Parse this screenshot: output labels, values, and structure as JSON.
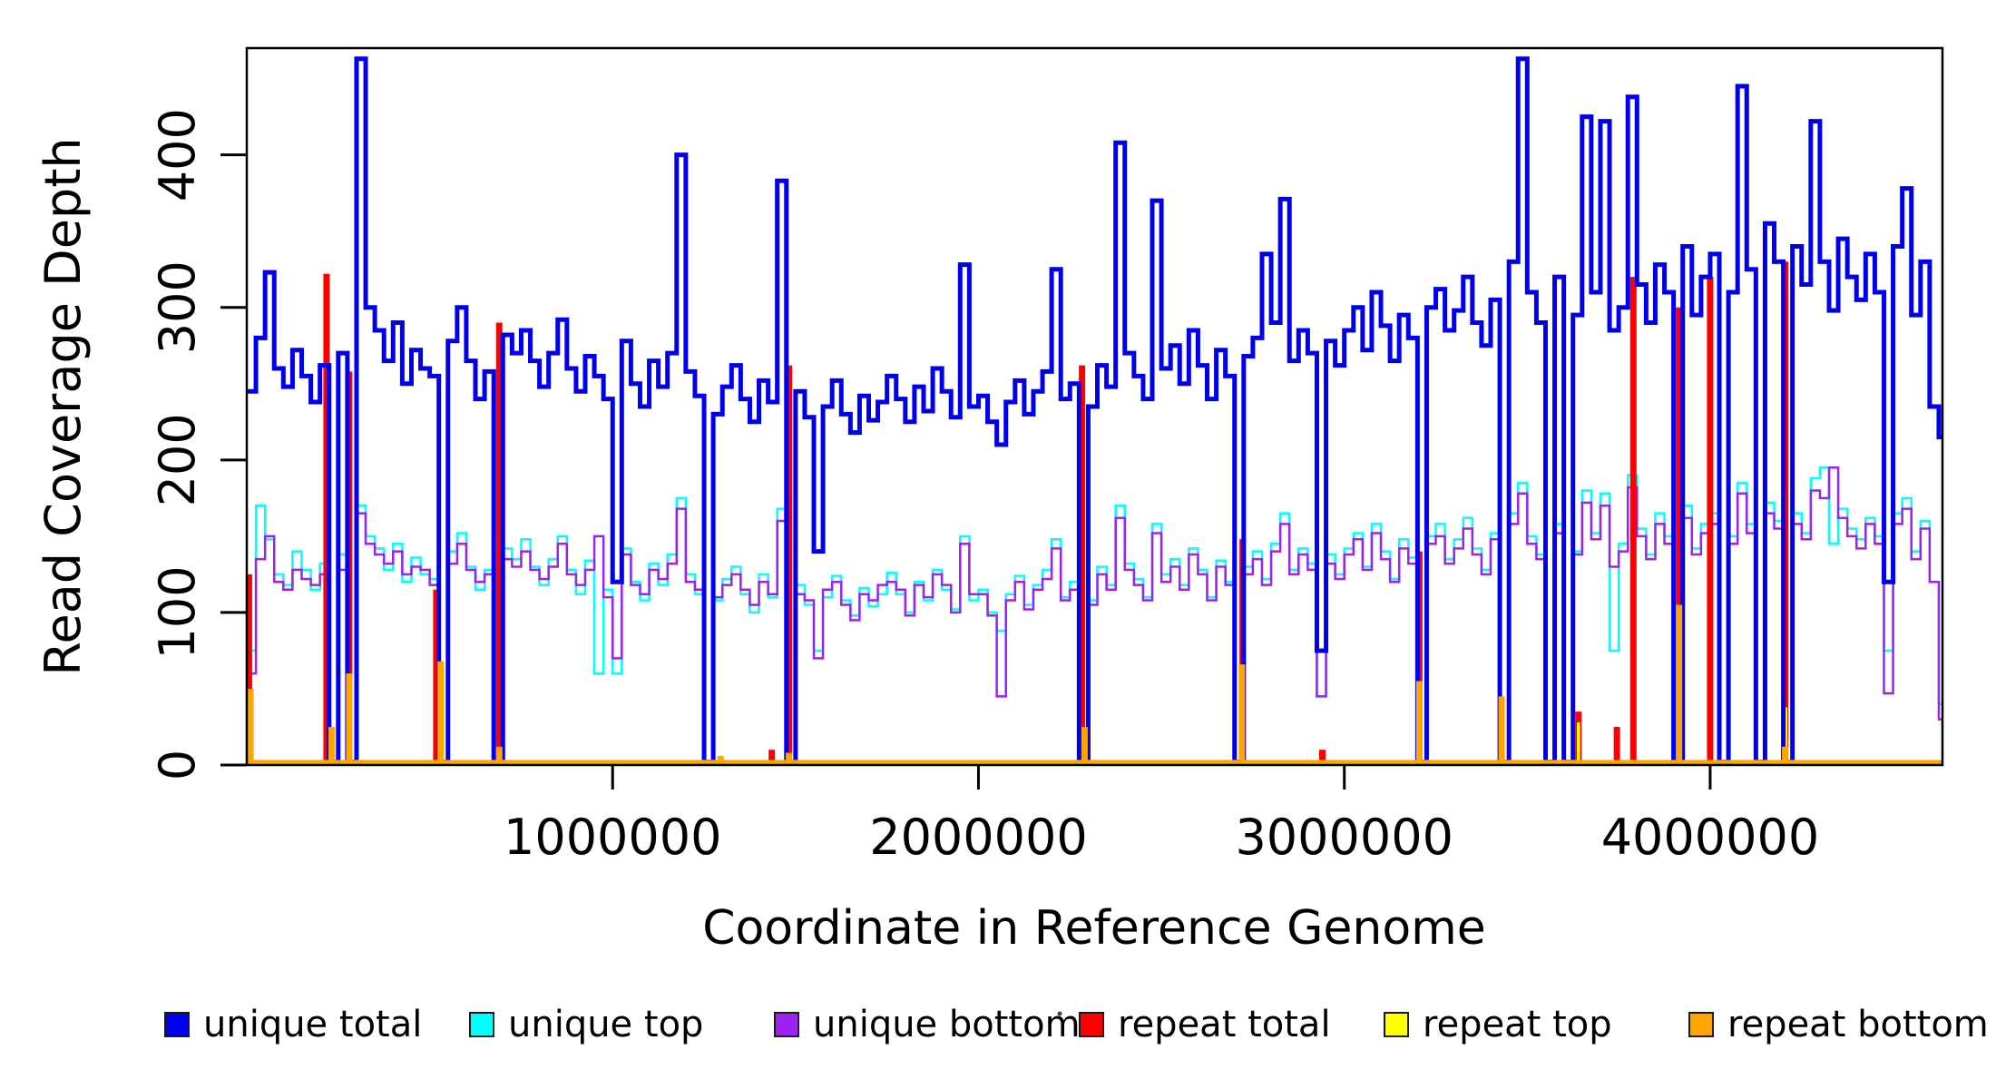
{
  "figure": {
    "background": "#ffffff"
  },
  "chart_data": {
    "type": "line",
    "subtype": "step-coverage-plot",
    "title": "",
    "xlabel": "Coordinate in Reference Genome",
    "ylabel": "Read Coverage Depth",
    "xlim": [
      0,
      4635000
    ],
    "ylim": [
      0,
      470
    ],
    "grid": false,
    "legend_position": "bottom",
    "bin_size": 25000,
    "x_ticks": [
      {
        "value": 1000000,
        "label": "1000000"
      },
      {
        "value": 2000000,
        "label": "2000000"
      },
      {
        "value": 3000000,
        "label": "3000000"
      },
      {
        "value": 4000000,
        "label": "4000000"
      }
    ],
    "y_ticks": [
      {
        "value": 0,
        "label": "0"
      },
      {
        "value": 100,
        "label": "100"
      },
      {
        "value": 200,
        "label": "200"
      },
      {
        "value": 300,
        "label": "300"
      },
      {
        "value": 400,
        "label": "400"
      }
    ],
    "series": [
      {
        "name": "unique total",
        "color": "#0000EE",
        "line_width": 5,
        "kind": "step",
        "values": [
          245,
          280,
          323,
          260,
          248,
          272,
          255,
          238,
          262,
          2,
          270,
          2,
          463,
          300,
          285,
          265,
          290,
          250,
          272,
          260,
          255,
          2,
          278,
          300,
          265,
          240,
          258,
          2,
          282,
          270,
          285,
          265,
          248,
          270,
          292,
          260,
          245,
          268,
          255,
          240,
          120,
          278,
          250,
          235,
          265,
          248,
          270,
          400,
          258,
          242,
          2,
          230,
          248,
          262,
          240,
          225,
          252,
          238,
          383,
          2,
          245,
          228,
          140,
          235,
          252,
          230,
          218,
          242,
          226,
          238,
          255,
          240,
          225,
          248,
          232,
          260,
          245,
          228,
          328,
          235,
          242,
          225,
          210,
          238,
          252,
          230,
          245,
          258,
          325,
          240,
          250,
          2,
          235,
          262,
          248,
          408,
          270,
          255,
          240,
          370,
          260,
          275,
          250,
          285,
          262,
          240,
          272,
          255,
          2,
          268,
          280,
          335,
          290,
          371,
          265,
          285,
          270,
          75,
          278,
          262,
          285,
          300,
          272,
          310,
          288,
          265,
          295,
          280,
          2,
          300,
          312,
          285,
          298,
          320,
          290,
          275,
          305,
          2,
          330,
          463,
          310,
          290,
          2,
          320,
          2,
          295,
          425,
          310,
          422,
          285,
          300,
          438,
          315,
          290,
          328,
          310,
          2,
          340,
          295,
          320,
          335,
          2,
          310,
          445,
          325,
          2,
          355,
          330,
          2,
          340,
          315,
          422,
          330,
          298,
          345,
          320,
          305,
          335,
          310,
          120,
          340,
          378,
          295,
          330,
          235,
          215
        ]
      },
      {
        "name": "unique top",
        "color": "#00FFFF",
        "line_width": 2.5,
        "kind": "step",
        "values": [
          75,
          170,
          148,
          125,
          118,
          140,
          128,
          115,
          132,
          2,
          138,
          2,
          170,
          150,
          142,
          128,
          145,
          120,
          136,
          125,
          122,
          2,
          140,
          152,
          130,
          115,
          128,
          2,
          142,
          135,
          148,
          130,
          118,
          135,
          150,
          128,
          112,
          134,
          60,
          115,
          60,
          142,
          120,
          108,
          132,
          118,
          138,
          175,
          125,
          112,
          2,
          108,
          122,
          130,
          112,
          100,
          125,
          110,
          168,
          2,
          118,
          105,
          75,
          110,
          124,
          108,
          98,
          116,
          104,
          112,
          126,
          112,
          100,
          120,
          108,
          128,
          115,
          102,
          150,
          108,
          115,
          100,
          88,
          112,
          124,
          105,
          118,
          128,
          148,
          110,
          120,
          2,
          108,
          130,
          118,
          170,
          132,
          122,
          110,
          158,
          125,
          135,
          118,
          142,
          128,
          110,
          134,
          120,
          2,
          130,
          140,
          122,
          145,
          165,
          128,
          142,
          132,
          45,
          138,
          125,
          142,
          152,
          130,
          158,
          140,
          122,
          148,
          136,
          2,
          150,
          158,
          135,
          148,
          162,
          142,
          128,
          152,
          2,
          165,
          185,
          150,
          138,
          2,
          158,
          2,
          140,
          180,
          152,
          178,
          75,
          145,
          190,
          155,
          138,
          165,
          150,
          2,
          170,
          142,
          158,
          165,
          2,
          150,
          185,
          158,
          2,
          172,
          160,
          2,
          165,
          152,
          188,
          195,
          145,
          168,
          155,
          148,
          162,
          150,
          75,
          165,
          175,
          140,
          160,
          120,
          40
        ]
      },
      {
        "name": "unique bottom",
        "color": "#A020F0",
        "line_width": 2.5,
        "kind": "step",
        "values": [
          60,
          135,
          150,
          120,
          115,
          128,
          122,
          118,
          125,
          2,
          128,
          2,
          165,
          145,
          138,
          132,
          140,
          125,
          130,
          128,
          118,
          2,
          132,
          145,
          128,
          120,
          125,
          2,
          135,
          130,
          140,
          128,
          122,
          130,
          145,
          125,
          118,
          128,
          150,
          110,
          70,
          138,
          118,
          112,
          128,
          122,
          132,
          168,
          120,
          115,
          2,
          110,
          118,
          125,
          115,
          105,
          120,
          112,
          160,
          2,
          112,
          108,
          70,
          115,
          120,
          105,
          95,
          112,
          108,
          118,
          120,
          115,
          98,
          118,
          110,
          125,
          118,
          100,
          145,
          112,
          112,
          98,
          45,
          108,
          120,
          102,
          115,
          122,
          142,
          108,
          115,
          2,
          105,
          125,
          115,
          162,
          128,
          118,
          108,
          152,
          120,
          130,
          115,
          138,
          125,
          108,
          130,
          118,
          2,
          125,
          135,
          118,
          140,
          158,
          125,
          138,
          128,
          45,
          132,
          122,
          138,
          148,
          128,
          152,
          135,
          120,
          142,
          132,
          2,
          145,
          150,
          132,
          142,
          155,
          138,
          125,
          148,
          2,
          158,
          178,
          145,
          135,
          2,
          152,
          2,
          138,
          172,
          148,
          170,
          130,
          140,
          182,
          150,
          135,
          158,
          145,
          2,
          162,
          138,
          152,
          158,
          2,
          145,
          178,
          152,
          2,
          165,
          155,
          2,
          158,
          148,
          180,
          175,
          195,
          162,
          150,
          142,
          158,
          145,
          47,
          158,
          168,
          135,
          155,
          120,
          30
        ]
      },
      {
        "name": "repeat total",
        "color": "#FF0000",
        "line_width": 4,
        "kind": "baseline-spikes",
        "baseline": 1,
        "spike_width": 7,
        "spikes": [
          [
            6000,
            125
          ],
          [
            218000,
            322
          ],
          [
            280000,
            258
          ],
          [
            518000,
            115
          ],
          [
            690000,
            290
          ],
          [
            1435000,
            10
          ],
          [
            1482000,
            262
          ],
          [
            2283000,
            262
          ],
          [
            2722000,
            148
          ],
          [
            2940000,
            10
          ],
          [
            3205000,
            140
          ],
          [
            3640000,
            35
          ],
          [
            3745000,
            25
          ],
          [
            3790000,
            320
          ],
          [
            3915000,
            300
          ],
          [
            4000000,
            320
          ],
          [
            4205000,
            330
          ]
        ]
      },
      {
        "name": "repeat top",
        "color": "#FFFF00",
        "line_width": 2.5,
        "kind": "baseline-spikes",
        "baseline": 0.5,
        "spike_width": 3.5,
        "spikes": [
          [
            528000,
            70
          ],
          [
            3640000,
            28
          ],
          [
            4207000,
            38
          ]
        ]
      },
      {
        "name": "repeat bottom",
        "color": "#FFA500",
        "line_width": 4.5,
        "kind": "baseline-spikes",
        "baseline": 2,
        "spike_width": 7,
        "spikes": [
          [
            10000,
            50
          ],
          [
            232000,
            25
          ],
          [
            280000,
            60
          ],
          [
            530000,
            68
          ],
          [
            690000,
            12
          ],
          [
            1295000,
            6
          ],
          [
            1482000,
            8
          ],
          [
            2290000,
            25
          ],
          [
            2720000,
            66
          ],
          [
            3205000,
            55
          ],
          [
            3430000,
            45
          ],
          [
            3915000,
            105
          ],
          [
            4205000,
            12
          ]
        ]
      }
    ],
    "draw_order": [
      "unique top",
      "unique bottom",
      "repeat total",
      "repeat top",
      "unique total",
      "repeat bottom"
    ],
    "legend": {
      "items": [
        {
          "label": "unique total",
          "color": "#0000EE"
        },
        {
          "label": "unique top",
          "color": "#00FFFF"
        },
        {
          "label": "unique bottom",
          "color": "#A020F0"
        },
        {
          "label": "repeat total",
          "color": "#FF0000"
        },
        {
          "label": "repeat top",
          "color": "#FFFF00"
        },
        {
          "label": "repeat bottom",
          "color": "#FFA500"
        }
      ],
      "stray_mark": "·"
    }
  }
}
